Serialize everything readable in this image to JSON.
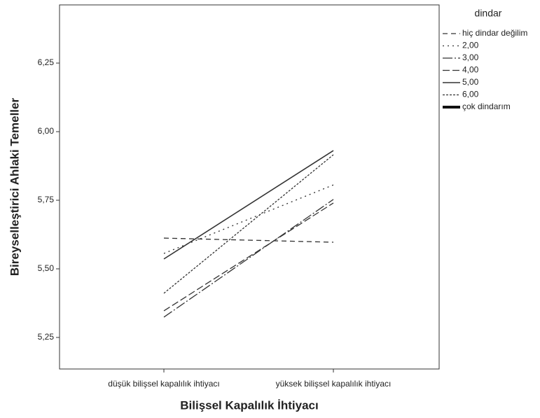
{
  "chart_data": {
    "type": "line",
    "x_label": "Bilişsel Kapalılık İhtiyacı",
    "y_label": "Bireyselleştirici Ahlaki Temeller",
    "legend_title": "dindar",
    "legend_position": "right",
    "categories": [
      "düşük bilişsel kapalılık ihtiyacı",
      "yüksek bilişsel kapalılık ihtiyacı"
    ],
    "ylim": [
      5.135,
      6.462
    ],
    "yticks": [
      {
        "value": 5.25,
        "label": "5,25"
      },
      {
        "value": 5.5,
        "label": "5,50"
      },
      {
        "value": 5.75,
        "label": "5,75"
      },
      {
        "value": 6.0,
        "label": "6,00"
      },
      {
        "value": 6.25,
        "label": "6,25"
      }
    ],
    "series": [
      {
        "name": "hiç dindar değilim",
        "color": "#333333",
        "dash": "7 5",
        "width": 1.3,
        "values": [
          5.612,
          5.597
        ]
      },
      {
        "name": "2,00",
        "color": "#333333",
        "dash": "2 5",
        "width": 1.3,
        "values": [
          5.556,
          5.806
        ]
      },
      {
        "name": "3,00",
        "color": "#333333",
        "dash": "14 3 2 3",
        "width": 1.3,
        "values": [
          5.324,
          5.753
        ]
      },
      {
        "name": "4,00",
        "color": "#333333",
        "dash": "10 4",
        "width": 1.3,
        "values": [
          5.347,
          5.74
        ]
      },
      {
        "name": "5,00",
        "color": "#333333",
        "dash": "none",
        "width": 1.6,
        "values": [
          5.536,
          5.931
        ]
      },
      {
        "name": "6,00",
        "color": "#333333",
        "dash": "3 2",
        "width": 1.3,
        "values": [
          5.411,
          5.916
        ]
      },
      {
        "name": "çok dindarım",
        "color": "#111111",
        "dash": "none",
        "width": 4,
        "values": [
          null,
          null
        ]
      }
    ]
  }
}
